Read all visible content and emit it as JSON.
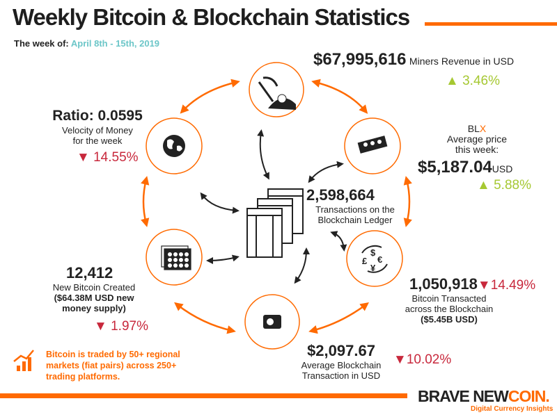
{
  "header": {
    "title": "Weekly Bitcoin & Blockchain Statistics",
    "week_label": "The week of:",
    "week_dates": "April 8th - 15th, 2019"
  },
  "miners": {
    "value": "$67,995,616",
    "label": "Miners Revenue in USD",
    "change": "3.46%",
    "direction": "up",
    "icon": "pickaxe-bitcoin-icon"
  },
  "blx": {
    "name_a": "BL",
    "name_b": "X",
    "label1": "Average price",
    "label2": "this week:",
    "value": "$5,187.04",
    "unit": "USD",
    "change": "5.88%",
    "direction": "up",
    "icon": "banknotes-icon"
  },
  "transacted": {
    "value": "1,050,918",
    "change": "14.49%",
    "direction": "down",
    "label1": "Bitcoin Transacted",
    "label2": "across the Blockchain",
    "label3": "($5.45B USD)",
    "icon": "currency-exchange-icon"
  },
  "avg_tx": {
    "value": "$2,097.67",
    "label1": "Average Blockchain",
    "label2": "Transaction in USD",
    "change": "10.02%",
    "direction": "down",
    "icon": "wallet-icon"
  },
  "new_btc": {
    "value": "12,412",
    "label1": "New Bitcoin Created",
    "label2": "($64.38M USD new",
    "label3": "money supply)",
    "change": "1.97%",
    "direction": "down",
    "icon": "coin-stacks-icon"
  },
  "velocity": {
    "value": "Ratio: 0.0595",
    "label1": "Velocity of Money",
    "label2": "for the week",
    "change": "14.55%",
    "direction": "down",
    "icon": "globe-icon"
  },
  "transactions": {
    "value": "2,598,664",
    "label1": "Transactions on the",
    "label2": "Blockchain Ledger",
    "icon": "ledger-documents-icon"
  },
  "note": {
    "text": "Bitcoin is traded by 50+ regional markets (fiat pairs) across 250+ trading platforms.",
    "icon": "growth-chart-icon"
  },
  "logo": {
    "a": "BRAVE NEW",
    "b": "COIN.",
    "tagline": "Digital Currency Insights"
  },
  "colors": {
    "accent": "#ff6a00",
    "up": "#a6c832",
    "down": "#c8283c",
    "date": "#6cc6c8"
  }
}
